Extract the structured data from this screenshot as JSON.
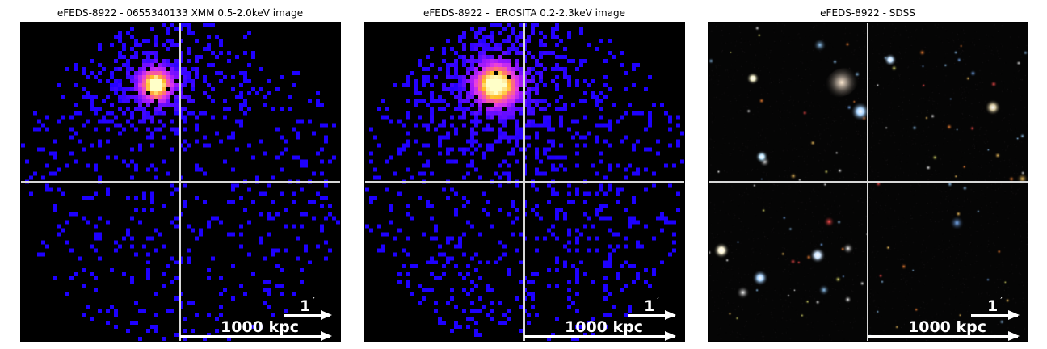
{
  "panels": [
    {
      "title": "eFEDS-8922 - 0655340133 XMM 0.5-2.0keV image",
      "type": "xray",
      "scale_angle_value": "1",
      "scale_angle_unit": "′",
      "scale_distance": "1000 kpc"
    },
    {
      "title": "eFEDS-8922 -  EROSITA 0.2-2.3keV image",
      "type": "xray",
      "scale_angle_value": "1",
      "scale_angle_unit": "′",
      "scale_distance": "1000 kpc"
    },
    {
      "title": "eFEDS-8922 - SDSS",
      "type": "optical",
      "scale_angle_value": "1",
      "scale_angle_unit": "′",
      "scale_distance": "1000 kpc"
    }
  ],
  "colors": {
    "background": "#000000",
    "crosshair": "#d8d8d8",
    "scalebar": "#ffffff",
    "counts_low": "#1a00ff",
    "counts_mid": "#c040ff",
    "counts_high": "#ffff60"
  }
}
